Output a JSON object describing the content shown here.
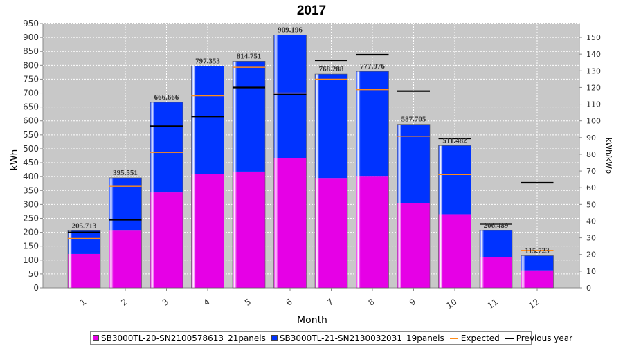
{
  "chart_data": {
    "type": "bar",
    "title": "2017",
    "xlabel": "Month",
    "ylabel": "kWh",
    "y2label": "kWh/kWp",
    "ylim": [
      0,
      950
    ],
    "y2lim": [
      0,
      158.3
    ],
    "yticks": [
      0,
      50,
      100,
      150,
      200,
      250,
      300,
      350,
      400,
      450,
      500,
      550,
      600,
      650,
      700,
      750,
      800,
      850,
      900,
      950
    ],
    "y2ticks": [
      0,
      10,
      20,
      30,
      40,
      50,
      60,
      70,
      80,
      90,
      100,
      110,
      120,
      130,
      140,
      150
    ],
    "categories": [
      "1",
      "2",
      "3",
      "4",
      "5",
      "6",
      "7",
      "8",
      "9",
      "10",
      "11",
      "12"
    ],
    "series": [
      {
        "name": "SB3000TL-20-SN2100578613_21panels",
        "color": "#e600e6",
        "values": [
          122,
          206,
          343,
          410,
          418,
          467,
          395,
          400,
          305,
          265,
          110,
          63
        ]
      },
      {
        "name": "SB3000TL-21-SN2130032031_19panels",
        "color": "#0033ff",
        "values": [
          83.713,
          189.551,
          323.666,
          387.353,
          396.751,
          442.196,
          373.288,
          377.976,
          282.705,
          246.482,
          96.489,
          52.723
        ]
      }
    ],
    "totals": [
      "205.713",
      "395.551",
      "666.666",
      "797.353",
      "814.751",
      "909.196",
      "768.288",
      "777.976",
      "587.705",
      "511.482",
      "206.489",
      "115.723"
    ],
    "expected": {
      "name": "Expected",
      "color": "#ff8c1a",
      "values": [
        178,
        365,
        487,
        690,
        793,
        700,
        750,
        712,
        545,
        407,
        230,
        135
      ]
    },
    "previous_year": {
      "name": "Previous year",
      "color": "#000000",
      "values": [
        200,
        245,
        581,
        616,
        720,
        694,
        818,
        838,
        707,
        537,
        230,
        378
      ]
    },
    "grid": true
  }
}
